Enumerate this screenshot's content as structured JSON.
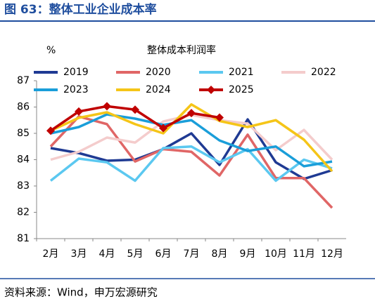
{
  "header": {
    "title": "图 63：整体工业企业成本率"
  },
  "footer": {
    "source": "资料来源：Wind，申万宏源研究"
  },
  "chart_data": {
    "type": "line",
    "title": "整体成本利润率",
    "y_unit": "%",
    "categories": [
      "2月",
      "3月",
      "4月",
      "5月",
      "6月",
      "7月",
      "8月",
      "9月",
      "10月",
      "11月",
      "12月"
    ],
    "ylim": [
      81,
      87
    ],
    "yticks": [
      81,
      82,
      83,
      84,
      85,
      86,
      87
    ],
    "legend": "top",
    "series": [
      {
        "name": "2019",
        "color": "#1f3a93",
        "values": [
          84.44,
          84.25,
          83.96,
          84.0,
          84.4,
          85.0,
          83.8,
          85.53,
          83.9,
          83.27,
          83.6
        ]
      },
      {
        "name": "2020",
        "color": "#e06666",
        "values": [
          84.5,
          85.64,
          85.35,
          83.93,
          84.4,
          84.3,
          83.4,
          84.95,
          83.3,
          83.3,
          82.17
        ]
      },
      {
        "name": "2021",
        "color": "#5bc8f0",
        "values": [
          83.2,
          84.04,
          83.9,
          83.2,
          84.44,
          84.5,
          83.9,
          84.4,
          83.2,
          84.0,
          83.67
        ]
      },
      {
        "name": "2022",
        "color": "#f4cccc",
        "values": [
          84.0,
          84.3,
          84.84,
          84.65,
          85.45,
          85.7,
          85.5,
          85.37,
          84.36,
          85.13,
          84.0
        ]
      },
      {
        "name": "2023",
        "color": "#1a9ed9",
        "values": [
          85.0,
          85.24,
          85.72,
          85.56,
          85.32,
          85.5,
          84.73,
          84.33,
          84.5,
          83.75,
          83.93
        ]
      },
      {
        "name": "2024",
        "color": "#f5c518",
        "values": [
          85.1,
          85.59,
          85.8,
          85.35,
          85.0,
          86.1,
          85.47,
          85.24,
          85.5,
          84.76,
          83.56
        ]
      },
      {
        "name": "2025",
        "color": "#c00000",
        "marker": "diamond",
        "values": [
          85.1,
          85.83,
          86.03,
          85.9,
          85.2,
          85.77,
          85.6,
          null,
          null,
          null,
          null
        ]
      }
    ]
  }
}
